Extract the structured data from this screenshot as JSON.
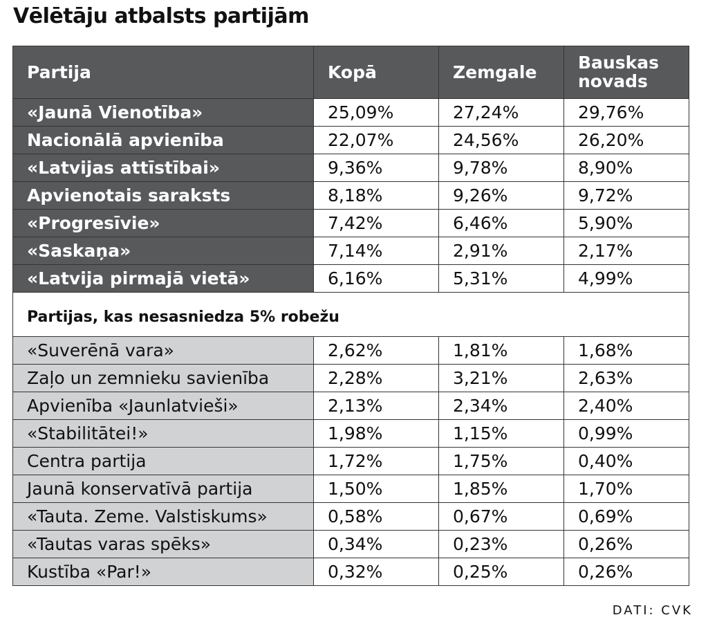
{
  "title": "Vēlētāju atbalsts partijām",
  "source": "DATI: CVK",
  "chart_data": {
    "type": "table",
    "title": "Vēlētāju atbalsts partijām",
    "columns": [
      "Partija",
      "Kopā",
      "Zemgale",
      "Bauskas novads"
    ],
    "rows": [
      {
        "party": "«Jaunā Vienotība»",
        "kopa": "25,09%",
        "zemgale": "27,24%",
        "bauska": "29,76%"
      },
      {
        "party": "Nacionālā apvienība",
        "kopa": "22,07%",
        "zemgale": "24,56%",
        "bauska": "26,20%"
      },
      {
        "party": "«Latvijas attīstībai»",
        "kopa": "9,36%",
        "zemgale": "9,78%",
        "bauska": "8,90%"
      },
      {
        "party": "Apvienotais saraksts",
        "kopa": "8,18%",
        "zemgale": "9,26%",
        "bauska": "9,72%"
      },
      {
        "party": "«Progresīvie»",
        "kopa": "7,42%",
        "zemgale": "6,46%",
        "bauska": "5,90%"
      },
      {
        "party": "«Saskaņa»",
        "kopa": "7,14%",
        "zemgale": "2,91%",
        "bauska": "2,17%"
      },
      {
        "party": "«Latvija pirmajā vietā»",
        "kopa": "6,16%",
        "zemgale": "5,31%",
        "bauska": "4,99%"
      }
    ],
    "section_label": "Partijas, kas nesasniedza 5% robežu",
    "minor_rows": [
      {
        "party": "«Suverēnā vara»",
        "kopa": "2,62%",
        "zemgale": "1,81%",
        "bauska": "1,68%"
      },
      {
        "party": "Zaļo un zemnieku savienība",
        "kopa": "2,28%",
        "zemgale": "3,21%",
        "bauska": "2,63%"
      },
      {
        "party": "Apvienība «Jaunlatvieši»",
        "kopa": "2,13%",
        "zemgale": "2,34%",
        "bauska": "2,40%"
      },
      {
        "party": "«Stabilitātei!»",
        "kopa": "1,98%",
        "zemgale": "1,15%",
        "bauska": "0,99%"
      },
      {
        "party": "Centra partija",
        "kopa": "1,72%",
        "zemgale": "1,75%",
        "bauska": "0,40%"
      },
      {
        "party": "Jaunā konservatīvā partija",
        "kopa": "1,50%",
        "zemgale": "1,85%",
        "bauska": "1,70%"
      },
      {
        "party": "«Tauta. Zeme. Valstiskums»",
        "kopa": "0,58%",
        "zemgale": "0,67%",
        "bauska": "0,69%"
      },
      {
        "party": "«Tautas varas spēks»",
        "kopa": "0,34%",
        "zemgale": "0,23%",
        "bauska": "0,26%"
      },
      {
        "party": "Kustība «Par!»",
        "kopa": "0,32%",
        "zemgale": "0,25%",
        "bauska": "0,26%"
      }
    ]
  },
  "colors": {
    "header_bg": "#58595b",
    "minor_party_bg": "#d1d2d4",
    "grid": "#333333"
  }
}
